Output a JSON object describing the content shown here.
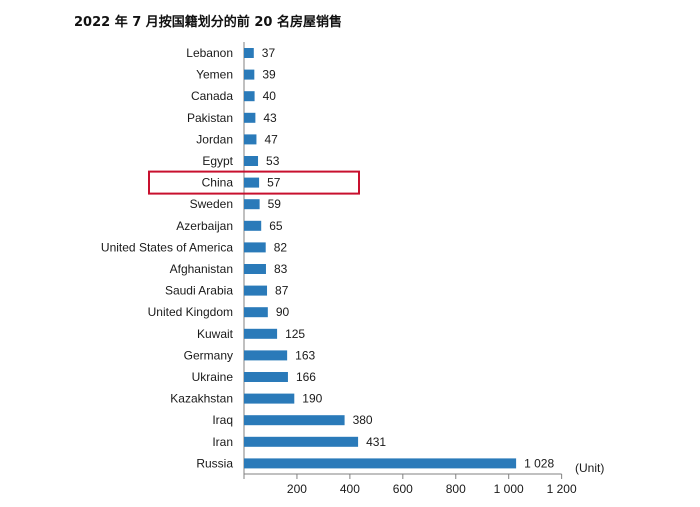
{
  "chart_data": {
    "type": "bar",
    "orientation": "horizontal",
    "title": "2022 年 7 月按国籍划分的前 20 名房屋销售",
    "unit_label": "(Unit)",
    "categories": [
      "Lebanon",
      "Yemen",
      "Canada",
      "Pakistan",
      "Jordan",
      "Egypt",
      "China",
      "Sweden",
      "Azerbaijan",
      "United States of America",
      "Afghanistan",
      "Saudi Arabia",
      "United Kingdom",
      "Kuwait",
      "Germany",
      "Ukraine",
      "Kazakhstan",
      "Iraq",
      "Iran",
      "Russia"
    ],
    "values": [
      37,
      39,
      40,
      43,
      47,
      53,
      57,
      59,
      65,
      82,
      83,
      87,
      90,
      125,
      163,
      166,
      190,
      380,
      431,
      1028
    ],
    "value_labels": [
      "37",
      "39",
      "40",
      "43",
      "47",
      "53",
      "57",
      "59",
      "65",
      "82",
      "83",
      "87",
      "90",
      "125",
      "163",
      "166",
      "190",
      "380",
      "431",
      "1 028"
    ],
    "xlim": [
      0,
      1200
    ],
    "xticks": [
      0,
      200,
      400,
      600,
      800,
      1000,
      1200
    ],
    "xtick_labels": [
      "",
      "200",
      "400",
      "600",
      "800",
      "1 000",
      "1 200"
    ],
    "highlight": "China",
    "colors": {
      "bar": "#2a7ab9",
      "highlight_box": "#c8102e",
      "axis": "#808080",
      "text": "#1a1a1a"
    },
    "grid": false,
    "legend": "none"
  }
}
